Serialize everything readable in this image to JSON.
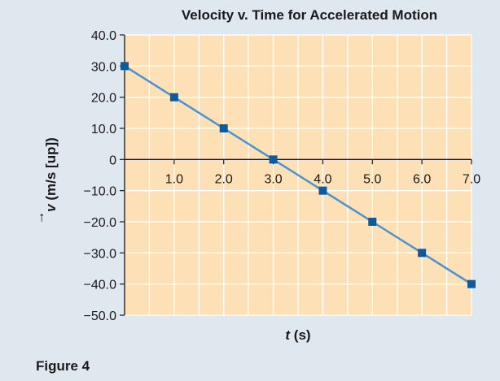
{
  "figure_label": "Figure 4",
  "chart_data": {
    "type": "line",
    "title": "Velocity v. Time for Accelerated Motion",
    "xlabel_var": "t",
    "xlabel_unit": " (s)",
    "ylabel_var": "v",
    "ylabel_unit": " (m/s [up])",
    "xlim": [
      0,
      7.0
    ],
    "ylim": [
      -50.0,
      40.0
    ],
    "x_ticks": [
      1.0,
      2.0,
      3.0,
      4.0,
      5.0,
      6.0,
      7.0
    ],
    "x_tick_labels": [
      "1.0",
      "2.0",
      "3.0",
      "4.0",
      "5.0",
      "6.0",
      "7.0"
    ],
    "y_ticks": [
      40.0,
      30.0,
      20.0,
      10.0,
      0,
      -10.0,
      -20.0,
      -30.0,
      -40.0,
      -50.0
    ],
    "y_tick_labels": [
      "40.0",
      "30.0",
      "20.0",
      "10.0",
      "0",
      "−10.0",
      "−20.0",
      "−30.0",
      "−40.0",
      "−50.0"
    ],
    "grid": true,
    "series": [
      {
        "x": [
          0,
          1.0,
          2.0,
          3.0,
          4.0,
          5.0,
          6.0,
          7.0
        ],
        "y": [
          30,
          20,
          10,
          0,
          -10,
          -20,
          -30,
          -40
        ]
      }
    ],
    "colors": {
      "plot_background": "#fde0b5",
      "grid": "#ffffff",
      "line": "#4a92d0",
      "marker": "#0f5a9c",
      "page_background": "#dfe7ef"
    }
  }
}
